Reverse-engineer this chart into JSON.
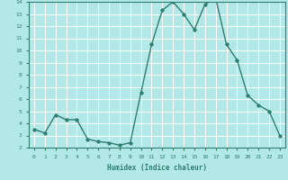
{
  "x": [
    0,
    1,
    2,
    3,
    4,
    5,
    6,
    7,
    8,
    9,
    10,
    11,
    12,
    13,
    14,
    15,
    16,
    17,
    18,
    19,
    20,
    21,
    22,
    23
  ],
  "y": [
    3.5,
    3.2,
    4.7,
    4.3,
    4.3,
    2.7,
    2.5,
    2.4,
    2.2,
    2.4,
    6.5,
    10.5,
    13.3,
    14.0,
    13.0,
    11.7,
    13.8,
    14.3,
    10.5,
    9.2,
    6.3,
    5.5,
    5.0,
    3.0
  ],
  "xlabel": "Humidex (Indice chaleur)",
  "ylabel": "",
  "xlim": [
    -0.5,
    23.5
  ],
  "ylim": [
    2,
    14
  ],
  "yticks": [
    2,
    3,
    4,
    5,
    6,
    7,
    8,
    9,
    10,
    11,
    12,
    13,
    14
  ],
  "xticks": [
    0,
    1,
    2,
    3,
    4,
    5,
    6,
    7,
    8,
    9,
    10,
    11,
    12,
    13,
    14,
    15,
    16,
    17,
    18,
    19,
    20,
    21,
    22,
    23
  ],
  "line_color": "#2e7d6e",
  "bg_color": "#b3e8e8",
  "grid_color": "#ffffff",
  "marker": "D",
  "marker_size": 1.8,
  "line_width": 1.0
}
